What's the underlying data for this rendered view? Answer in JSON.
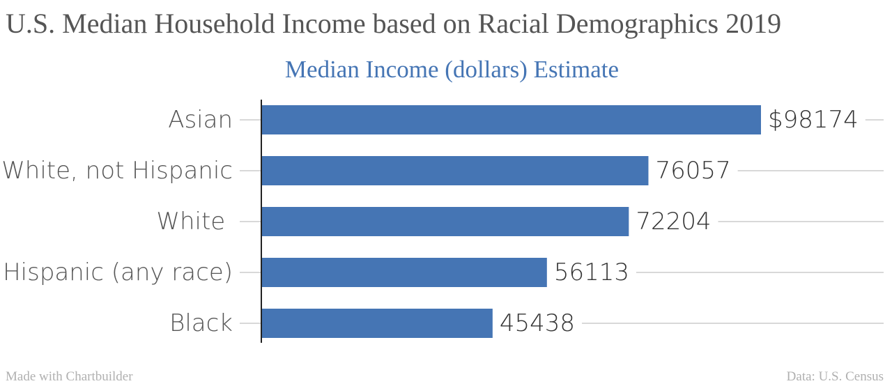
{
  "header": {
    "title": "U.S. Median Household Income based on Racial Demographics 2019"
  },
  "chart_data": {
    "type": "bar",
    "orientation": "horizontal",
    "title": "Median Income (dollars) Estimate",
    "categories": [
      "Asian",
      "White, not Hispanic",
      "White ",
      "Hispanic (any race)",
      "Black"
    ],
    "values": [
      98174,
      76057,
      72204,
      56113,
      45438
    ],
    "value_labels": [
      "$98174",
      "76057",
      "72204",
      "56113",
      "45438"
    ],
    "xlabel": "",
    "ylabel": "",
    "grid": true,
    "legend": "none",
    "bar_color": "#4575b4"
  },
  "footer": {
    "left": "Made with Chartbuilder",
    "right": "Data: U.S. Census"
  }
}
